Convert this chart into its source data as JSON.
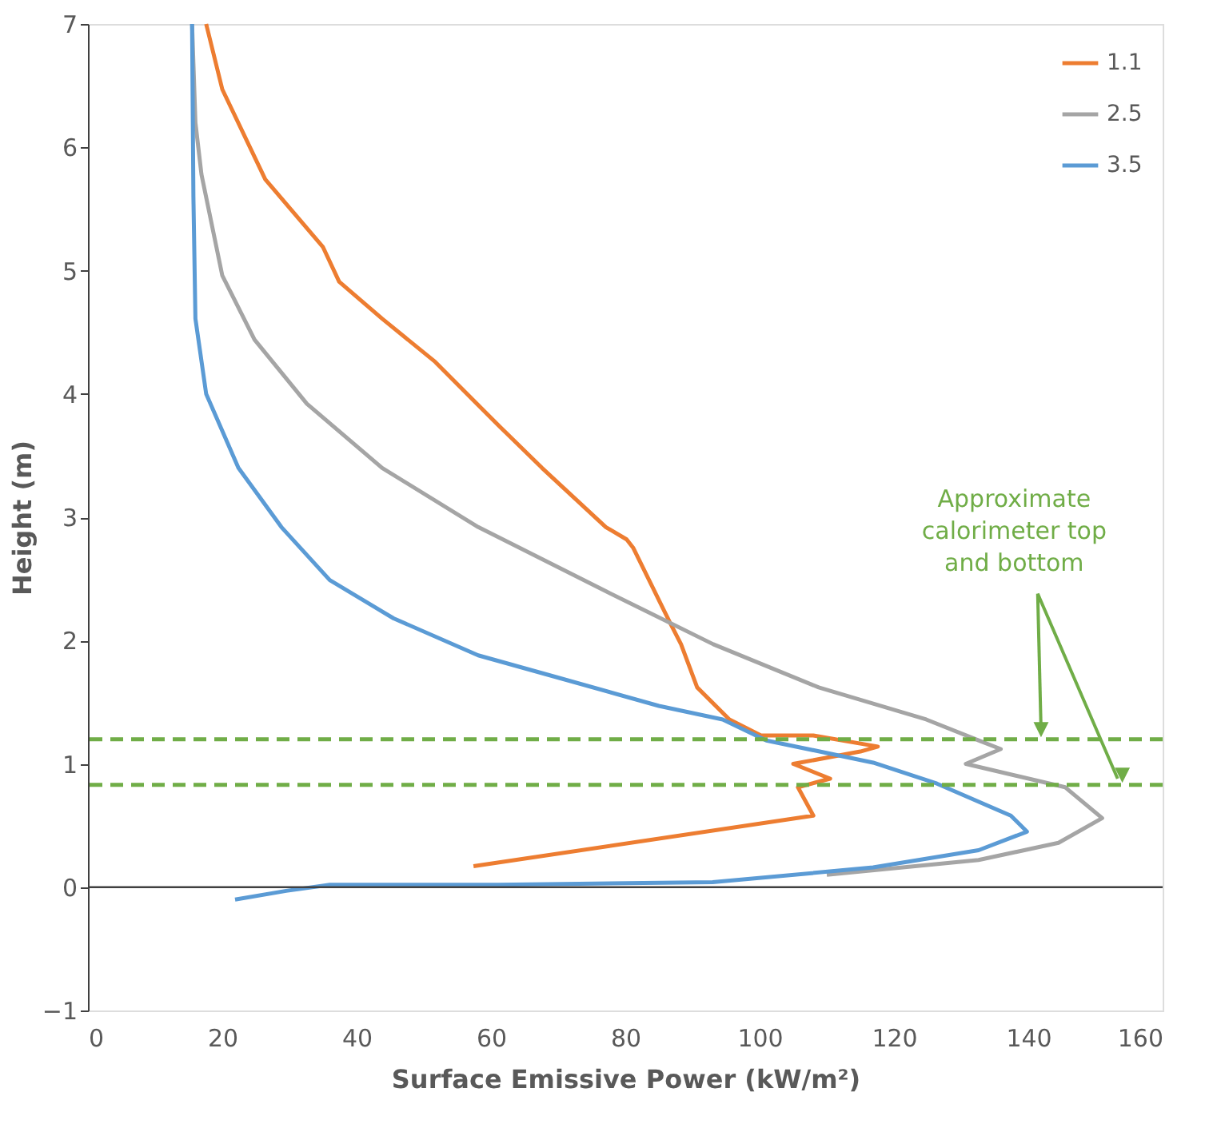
{
  "chart_data": {
    "type": "line",
    "xlabel": "Surface Emissive Power (kW/m²)",
    "ylabel": "Height (m)",
    "xlim": [
      0,
      160
    ],
    "xticks": [
      0,
      20,
      40,
      60,
      80,
      100,
      120,
      140,
      160
    ],
    "ylim": [
      -1,
      7
    ],
    "yticks": [
      -1,
      0,
      1,
      2,
      3,
      4,
      5,
      6,
      7
    ],
    "grid": false,
    "legend": "top right",
    "marker": "none",
    "line_style": "solid",
    "series": [
      {
        "name": "1.1",
        "color": "#ed7d31",
        "x": [
          17.6,
          20,
          26.4,
          35,
          37.4,
          43.8,
          51.7,
          61.2,
          67.6,
          77.1,
          80.2,
          81.2,
          86.7,
          88.3,
          90.7,
          95.5,
          100.2,
          108,
          117.6,
          115,
          105,
          110.5,
          105.7,
          108,
          57.4
        ],
        "values": [
          7.0,
          6.47,
          5.74,
          5.19,
          4.91,
          4.61,
          4.26,
          3.74,
          3.4,
          2.92,
          2.82,
          2.75,
          2.14,
          1.97,
          1.62,
          1.36,
          1.23,
          1.23,
          1.14,
          1.1,
          1.0,
          0.88,
          0.81,
          0.58,
          0.17
        ]
      },
      {
        "name": "2.5",
        "color": "#a5a5a5",
        "x": [
          15.5,
          16,
          16.9,
          20,
          24.8,
          32.6,
          43.8,
          58.1,
          62.9,
          77.1,
          93.1,
          108.8,
          124.8,
          132.6,
          135.9,
          130.7,
          145.5,
          151,
          144.5,
          132.6,
          110
        ],
        "values": [
          7.0,
          6.2,
          5.78,
          4.96,
          4.44,
          3.92,
          3.4,
          2.92,
          2.79,
          2.4,
          1.97,
          1.62,
          1.36,
          1.19,
          1.12,
          1.0,
          0.81,
          0.56,
          0.36,
          0.22,
          0.1
        ]
      },
      {
        "name": "3.5",
        "color": "#5b9bd5",
        "x": [
          15.5,
          15.7,
          16,
          17.6,
          22.4,
          28.8,
          36,
          45.5,
          58.1,
          69.3,
          85,
          94.5,
          101,
          116.9,
          126.4,
          137.4,
          139.8,
          132.6,
          116.9,
          93,
          61,
          36,
          29.5,
          21.9
        ],
        "values": [
          7.0,
          5.6,
          4.61,
          4.0,
          3.4,
          2.92,
          2.49,
          2.18,
          1.88,
          1.71,
          1.47,
          1.36,
          1.19,
          1.01,
          0.84,
          0.58,
          0.45,
          0.3,
          0.16,
          0.04,
          0.02,
          0.02,
          -0.03,
          -0.1
        ]
      }
    ],
    "ref_lines": [
      {
        "axis": "y",
        "value": 0,
        "color": "#404040",
        "line_style": "solid"
      },
      {
        "axis": "y",
        "value": 1.2,
        "color": "#70ad47",
        "line_style": "dashed"
      },
      {
        "axis": "y",
        "value": 0.83,
        "color": "#70ad47",
        "line_style": "dashed"
      }
    ],
    "annotations": [
      {
        "text": "Approximate\ncalorimeter top\nand bottom",
        "x": 141.9,
        "y": 1.2
      }
    ]
  }
}
